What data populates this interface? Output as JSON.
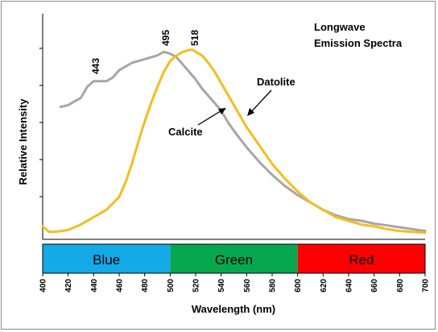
{
  "chart_data": {
    "type": "line",
    "title": "Longwave Emission Spectra",
    "title_lines": [
      "Longwave",
      "Emission Spectra"
    ],
    "xlabel": "Wavelength (nm)",
    "ylabel": "Relative Intensity",
    "xlim": [
      400,
      700
    ],
    "ylim": [
      0,
      1
    ],
    "x_ticks": [
      400,
      420,
      440,
      460,
      480,
      500,
      520,
      540,
      560,
      580,
      600,
      620,
      640,
      660,
      680,
      700
    ],
    "grid": false,
    "colors": {
      "datolite": "#f5bd1e",
      "calcite": "#a6a6a6",
      "blue": "#13aae8",
      "green": "#06a84f",
      "red": "#ff0000"
    },
    "series": [
      {
        "name": "Calcite",
        "color": "#a6a6a6",
        "x": [
          414,
          420,
          425,
          430,
          435,
          440,
          445,
          450,
          455,
          460,
          465,
          470,
          475,
          480,
          485,
          490,
          495,
          500,
          505,
          510,
          515,
          520,
          525,
          530,
          535,
          540,
          545,
          550,
          560,
          570,
          580,
          590,
          600,
          610,
          620,
          630,
          640,
          650,
          660,
          670,
          680,
          690,
          700
        ],
        "y": [
          0.69,
          0.7,
          0.72,
          0.74,
          0.8,
          0.83,
          0.83,
          0.83,
          0.85,
          0.89,
          0.91,
          0.93,
          0.94,
          0.95,
          0.96,
          0.97,
          0.99,
          0.98,
          0.96,
          0.92,
          0.88,
          0.84,
          0.79,
          0.75,
          0.71,
          0.67,
          0.61,
          0.56,
          0.47,
          0.39,
          0.32,
          0.26,
          0.21,
          0.17,
          0.13,
          0.1,
          0.08,
          0.07,
          0.055,
          0.045,
          0.035,
          0.025,
          0.015
        ]
      },
      {
        "name": "Datolite",
        "color": "#f5bd1e",
        "x": [
          400,
          405,
          410,
          420,
          430,
          440,
          450,
          460,
          465,
          470,
          475,
          480,
          485,
          490,
          495,
          500,
          505,
          510,
          515,
          518,
          520,
          525,
          530,
          535,
          540,
          545,
          550,
          555,
          560,
          570,
          580,
          590,
          600,
          610,
          620,
          630,
          640,
          650,
          660,
          670,
          680,
          690,
          700
        ],
        "y": [
          0.04,
          0.01,
          0.01,
          0.02,
          0.05,
          0.09,
          0.13,
          0.2,
          0.28,
          0.38,
          0.5,
          0.61,
          0.71,
          0.8,
          0.88,
          0.94,
          0.97,
          0.99,
          1.0,
          1.0,
          0.99,
          0.97,
          0.93,
          0.88,
          0.82,
          0.76,
          0.7,
          0.64,
          0.58,
          0.48,
          0.38,
          0.3,
          0.23,
          0.17,
          0.13,
          0.09,
          0.07,
          0.05,
          0.04,
          0.025,
          0.015,
          0.01,
          0.005
        ]
      }
    ],
    "annotations": [
      {
        "text": "443",
        "x": 443
      },
      {
        "text": "495",
        "x": 495
      },
      {
        "text": "518",
        "x": 518
      }
    ],
    "series_labels": {
      "datolite": "Datolite",
      "calcite": "Calcite"
    },
    "bands": [
      {
        "label": "Blue",
        "from": 400,
        "to": 500,
        "color": "#13aae8"
      },
      {
        "label": "Green",
        "from": 500,
        "to": 600,
        "color": "#06a84f"
      },
      {
        "label": "Red",
        "from": 600,
        "to": 700,
        "color": "#ff0000"
      }
    ]
  }
}
